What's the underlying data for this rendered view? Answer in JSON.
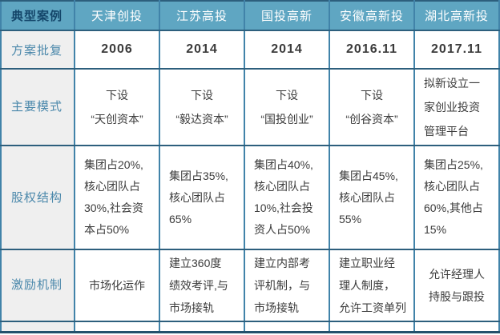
{
  "table": {
    "header": {
      "corner": "典型案例",
      "columns": [
        "天津创投",
        "江苏高投",
        "国投高新",
        "安徽高新投",
        "湖北高新投"
      ]
    },
    "rows": [
      {
        "label": "方案批复",
        "cells": [
          "2006",
          "2014",
          "2014",
          "2016.11",
          "2017.11"
        ]
      },
      {
        "label": "主要模式",
        "cells": [
          "下设\n“天创资本”",
          "下设\n“毅达资本”",
          "下设\n“国投创业”",
          "下设\n“创谷资本”",
          "拟新设立一\n家创业投资\n管理平台"
        ]
      },
      {
        "label": "股权结构",
        "cells": [
          "集团占20%,\n核心团队占\n30%,社会资\n本占50%",
          "集团占35%,\n核心团队占\n65%",
          "集团占40%,\n核心团队占\n10%,社会投\n资人占50%",
          "集团占45%,\n核心团队占\n55%",
          "集团占25%,\n核心团队占\n60%,其他占\n15%"
        ]
      },
      {
        "label": "激励机制",
        "cells": [
          "市场化运作",
          "建立360度\n绩效考评,与\n市场接轨",
          "建立内部考\n评机制，与\n市场接轨",
          "建立职业经\n理人制度，\n允许工资单列",
          "允许经理人\n持股与跟投"
        ]
      }
    ]
  },
  "colors": {
    "header_bg": "#5FA6C2",
    "header_text": "#FFFFFF",
    "corner_text": "#14466A",
    "label_bg": "#EFEFEF",
    "label_text": "#4B88AB",
    "body_text": "#3B3B3B",
    "border_vertical": "#4183A9",
    "border_horizontal": "#2D5F7D",
    "outer_border": "#24516C"
  }
}
